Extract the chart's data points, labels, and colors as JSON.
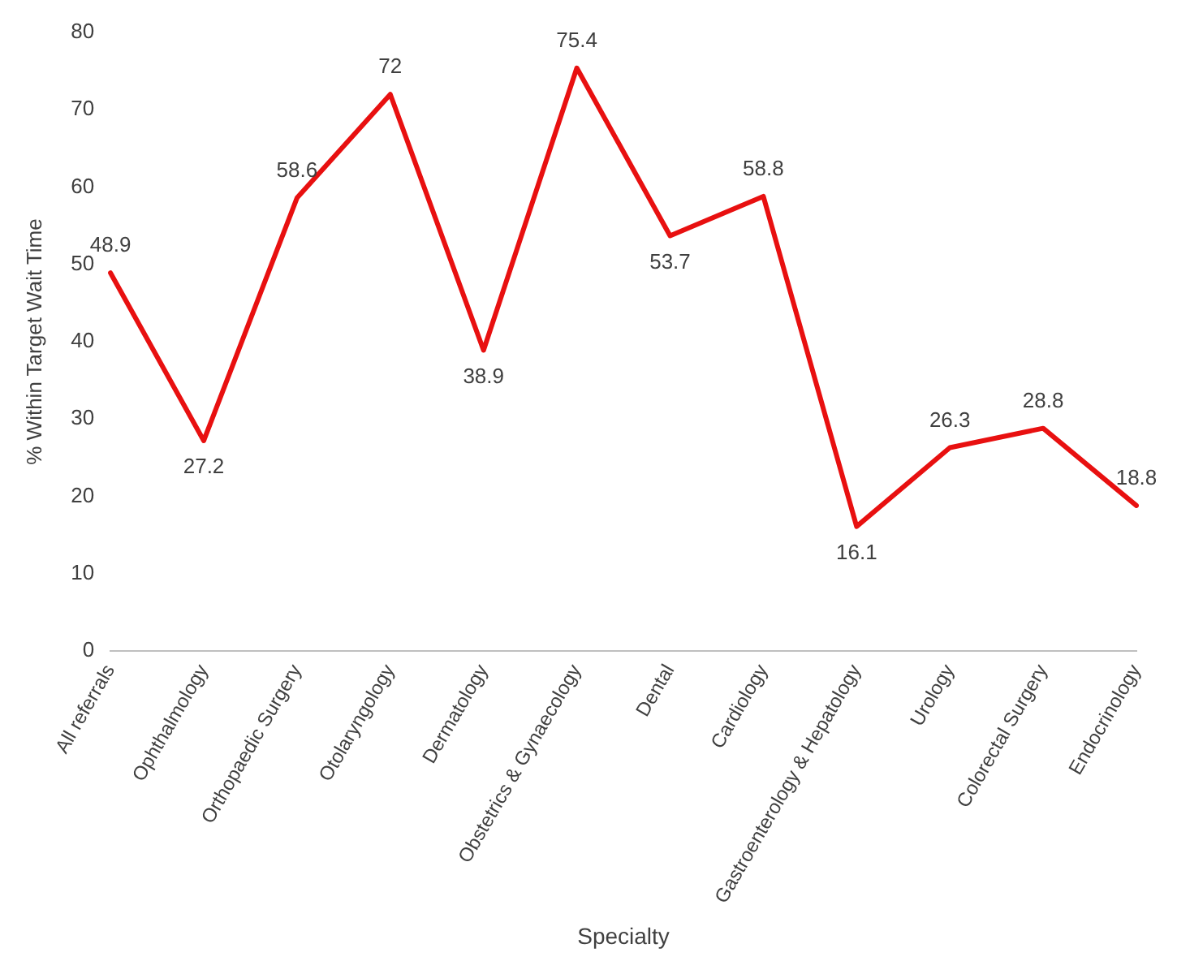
{
  "chart_data": {
    "type": "line",
    "xlabel": "Specialty",
    "ylabel": "% Within Target Wait Time",
    "categories": [
      "All referrals",
      "Ophthalmology",
      "Orthopaedic Surgery",
      "Otolaryngology",
      "Dermatology",
      "Obstetrics & Gynaecology",
      "Dental",
      "Cardiology",
      "Gastroenterology & Hepatology",
      "Urology",
      "Colorectal Surgery",
      "Endocrinology"
    ],
    "series": [
      {
        "color": "#e81010",
        "values": [
          48.9,
          27.2,
          58.6,
          72,
          38.9,
          75.4,
          53.7,
          58.8,
          16.1,
          26.3,
          28.8,
          18.8
        ]
      }
    ],
    "ylim": [
      0,
      80
    ],
    "yticks": [
      0,
      10,
      20,
      30,
      40,
      50,
      60,
      70,
      80
    ],
    "grid": false,
    "legend": false,
    "marker": "none",
    "line_style": "solid",
    "data_labels": true
  }
}
